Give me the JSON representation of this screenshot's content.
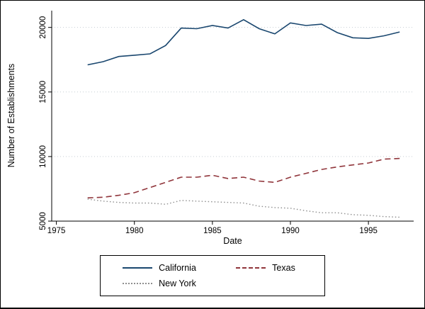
{
  "figure": {
    "background": "#ffffff",
    "border_color": "#000000"
  },
  "chart_data": {
    "type": "line",
    "title": "",
    "xlabel": "Date",
    "ylabel": "Number of Establishments",
    "xlim": [
      1974.7,
      1997.9
    ],
    "ylim": [
      5000,
      21300
    ],
    "xticks": [
      1975,
      1980,
      1985,
      1990,
      1995
    ],
    "yticks": [
      5000,
      10000,
      15000,
      20000
    ],
    "grid": "horizontal dotted gridlines at y ticks",
    "legend_position": "bottom",
    "x": [
      1977,
      1978,
      1979,
      1980,
      1981,
      1982,
      1983,
      1984,
      1985,
      1986,
      1987,
      1988,
      1989,
      1990,
      1991,
      1992,
      1993,
      1994,
      1995,
      1996,
      1997
    ],
    "series": [
      {
        "name": "California",
        "color": "#1a476f",
        "dash": "solid",
        "values": [
          17100,
          17350,
          17750,
          17850,
          17950,
          18600,
          19950,
          19900,
          20150,
          19950,
          20600,
          19900,
          19500,
          20350,
          20150,
          20250,
          19600,
          19200,
          19150,
          19350,
          19650
        ]
      },
      {
        "name": "Texas",
        "color": "#90353b",
        "dash": "dashed",
        "values": [
          6800,
          6850,
          7000,
          7200,
          7600,
          8000,
          8400,
          8400,
          8550,
          8300,
          8400,
          8100,
          8000,
          8400,
          8700,
          9000,
          9200,
          9350,
          9500,
          9800,
          9850
        ]
      },
      {
        "name": "New York",
        "color": "#8f8f8f",
        "dash": "dotted",
        "values": [
          6700,
          6550,
          6450,
          6400,
          6400,
          6300,
          6600,
          6550,
          6500,
          6450,
          6400,
          6150,
          6050,
          6000,
          5800,
          5650,
          5650,
          5500,
          5450,
          5350,
          5300
        ]
      }
    ]
  }
}
